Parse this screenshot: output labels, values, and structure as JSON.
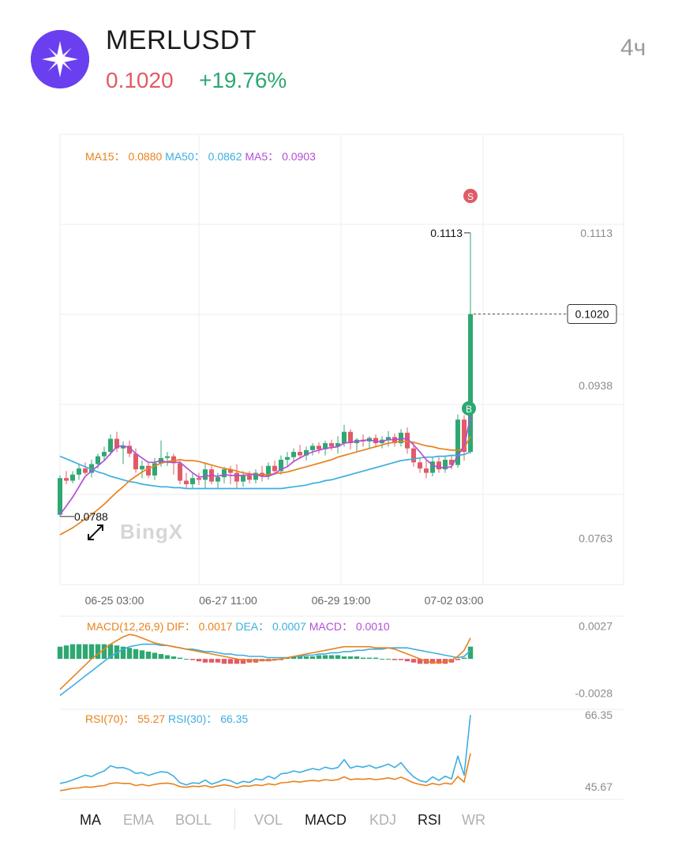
{
  "header": {
    "symbol": "MERLUSDT",
    "price": "0.1020",
    "change": "+19.76%",
    "interval": "4ч",
    "logo_icon": "merlin-star-icon"
  },
  "colors": {
    "up": "#2fa773",
    "down": "#e05b66",
    "ma15": "#e8821e",
    "ma50": "#3daee0",
    "ma5": "#b34fd6",
    "grid": "#eeeeee",
    "axis_text": "#8c8c8c",
    "logo_bg": "#6a3ff0"
  },
  "watermark": "BingX",
  "chart_data": [
    {
      "type": "candlestick",
      "legend": [
        {
          "label": "MA15",
          "value": "0.0880",
          "color": "#e8821e"
        },
        {
          "label": "MA50",
          "value": "0.0862",
          "color": "#3daee0"
        },
        {
          "label": "MA5",
          "value": "0.0903",
          "color": "#b34fd6"
        }
      ],
      "y_ticks": [
        "0.1113",
        "0.0938",
        "0.0763"
      ],
      "x_ticks": [
        "06-25 03:00",
        "06-27 11:00",
        "06-29 19:00",
        "07-02 03:00"
      ],
      "ylim": [
        0.071,
        0.1226
      ],
      "current_price": "0.1020",
      "high_marker": "0.1113",
      "low_marker": "0.0788",
      "signal_badges": [
        {
          "text": "S",
          "at": "high"
        },
        {
          "text": "B",
          "at": "entry"
        }
      ],
      "candles": [
        {
          "o": 0.079,
          "h": 0.0835,
          "l": 0.0788,
          "c": 0.0832
        },
        {
          "o": 0.0832,
          "h": 0.084,
          "l": 0.0825,
          "c": 0.0829
        },
        {
          "o": 0.0829,
          "h": 0.084,
          "l": 0.0826,
          "c": 0.0836
        },
        {
          "o": 0.0836,
          "h": 0.0848,
          "l": 0.083,
          "c": 0.0843
        },
        {
          "o": 0.0843,
          "h": 0.085,
          "l": 0.0836,
          "c": 0.0838
        },
        {
          "o": 0.0838,
          "h": 0.0853,
          "l": 0.0833,
          "c": 0.0848
        },
        {
          "o": 0.0848,
          "h": 0.086,
          "l": 0.0843,
          "c": 0.0857
        },
        {
          "o": 0.0857,
          "h": 0.0868,
          "l": 0.0852,
          "c": 0.0862
        },
        {
          "o": 0.0862,
          "h": 0.0882,
          "l": 0.0858,
          "c": 0.0877
        },
        {
          "o": 0.0877,
          "h": 0.0885,
          "l": 0.0862,
          "c": 0.0866
        },
        {
          "o": 0.0866,
          "h": 0.0874,
          "l": 0.0848,
          "c": 0.0869
        },
        {
          "o": 0.0869,
          "h": 0.0875,
          "l": 0.0856,
          "c": 0.086
        },
        {
          "o": 0.086,
          "h": 0.0866,
          "l": 0.0838,
          "c": 0.0842
        },
        {
          "o": 0.0842,
          "h": 0.0852,
          "l": 0.0832,
          "c": 0.0846
        },
        {
          "o": 0.0846,
          "h": 0.085,
          "l": 0.0832,
          "c": 0.0835
        },
        {
          "o": 0.0835,
          "h": 0.0855,
          "l": 0.083,
          "c": 0.0849
        },
        {
          "o": 0.0849,
          "h": 0.0875,
          "l": 0.0845,
          "c": 0.0855
        },
        {
          "o": 0.0855,
          "h": 0.0862,
          "l": 0.0846,
          "c": 0.0857
        },
        {
          "o": 0.0857,
          "h": 0.086,
          "l": 0.0836,
          "c": 0.0849
        },
        {
          "o": 0.0849,
          "h": 0.0852,
          "l": 0.0825,
          "c": 0.0829
        },
        {
          "o": 0.0829,
          "h": 0.0838,
          "l": 0.082,
          "c": 0.0825
        },
        {
          "o": 0.0825,
          "h": 0.0838,
          "l": 0.082,
          "c": 0.0832
        },
        {
          "o": 0.0832,
          "h": 0.0838,
          "l": 0.0824,
          "c": 0.083
        },
        {
          "o": 0.083,
          "h": 0.0848,
          "l": 0.082,
          "c": 0.0842
        },
        {
          "o": 0.0842,
          "h": 0.0846,
          "l": 0.0825,
          "c": 0.0828
        },
        {
          "o": 0.0828,
          "h": 0.0838,
          "l": 0.082,
          "c": 0.0833
        },
        {
          "o": 0.0833,
          "h": 0.0845,
          "l": 0.0826,
          "c": 0.0842
        },
        {
          "o": 0.0842,
          "h": 0.0846,
          "l": 0.0825,
          "c": 0.0838
        },
        {
          "o": 0.0838,
          "h": 0.0848,
          "l": 0.082,
          "c": 0.0828
        },
        {
          "o": 0.0828,
          "h": 0.084,
          "l": 0.0822,
          "c": 0.0835
        },
        {
          "o": 0.0835,
          "h": 0.084,
          "l": 0.0826,
          "c": 0.083
        },
        {
          "o": 0.083,
          "h": 0.0842,
          "l": 0.0826,
          "c": 0.0838
        },
        {
          "o": 0.0838,
          "h": 0.0846,
          "l": 0.0828,
          "c": 0.0834
        },
        {
          "o": 0.0834,
          "h": 0.085,
          "l": 0.083,
          "c": 0.0846
        },
        {
          "o": 0.0846,
          "h": 0.0852,
          "l": 0.0836,
          "c": 0.084
        },
        {
          "o": 0.084,
          "h": 0.0858,
          "l": 0.0836,
          "c": 0.0853
        },
        {
          "o": 0.0853,
          "h": 0.0862,
          "l": 0.0846,
          "c": 0.0856
        },
        {
          "o": 0.0856,
          "h": 0.0866,
          "l": 0.085,
          "c": 0.0862
        },
        {
          "o": 0.0862,
          "h": 0.087,
          "l": 0.0855,
          "c": 0.0858
        },
        {
          "o": 0.0858,
          "h": 0.0868,
          "l": 0.0852,
          "c": 0.0864
        },
        {
          "o": 0.0864,
          "h": 0.0872,
          "l": 0.0858,
          "c": 0.0869
        },
        {
          "o": 0.0869,
          "h": 0.0873,
          "l": 0.086,
          "c": 0.0865
        },
        {
          "o": 0.0865,
          "h": 0.0875,
          "l": 0.0858,
          "c": 0.0872
        },
        {
          "o": 0.0872,
          "h": 0.0876,
          "l": 0.0864,
          "c": 0.0868
        },
        {
          "o": 0.0868,
          "h": 0.088,
          "l": 0.086,
          "c": 0.0872
        },
        {
          "o": 0.0872,
          "h": 0.0893,
          "l": 0.0868,
          "c": 0.0885
        },
        {
          "o": 0.0885,
          "h": 0.0888,
          "l": 0.0865,
          "c": 0.0872
        },
        {
          "o": 0.0872,
          "h": 0.0878,
          "l": 0.0863,
          "c": 0.0876
        },
        {
          "o": 0.0876,
          "h": 0.0882,
          "l": 0.0868,
          "c": 0.0874
        },
        {
          "o": 0.0874,
          "h": 0.088,
          "l": 0.0866,
          "c": 0.0878
        },
        {
          "o": 0.0878,
          "h": 0.0882,
          "l": 0.0868,
          "c": 0.0872
        },
        {
          "o": 0.0872,
          "h": 0.088,
          "l": 0.0866,
          "c": 0.0876
        },
        {
          "o": 0.0876,
          "h": 0.0886,
          "l": 0.0868,
          "c": 0.0879
        },
        {
          "o": 0.0879,
          "h": 0.0883,
          "l": 0.0868,
          "c": 0.0872
        },
        {
          "o": 0.0872,
          "h": 0.0888,
          "l": 0.0868,
          "c": 0.0884
        },
        {
          "o": 0.0884,
          "h": 0.089,
          "l": 0.086,
          "c": 0.0866
        },
        {
          "o": 0.0866,
          "h": 0.0872,
          "l": 0.0845,
          "c": 0.085
        },
        {
          "o": 0.085,
          "h": 0.0855,
          "l": 0.0838,
          "c": 0.0843
        },
        {
          "o": 0.0843,
          "h": 0.0852,
          "l": 0.0832,
          "c": 0.0838
        },
        {
          "o": 0.0838,
          "h": 0.0856,
          "l": 0.0834,
          "c": 0.0851
        },
        {
          "o": 0.0851,
          "h": 0.0856,
          "l": 0.0838,
          "c": 0.0842
        },
        {
          "o": 0.0842,
          "h": 0.0858,
          "l": 0.0838,
          "c": 0.0853
        },
        {
          "o": 0.0853,
          "h": 0.0858,
          "l": 0.0842,
          "c": 0.0847
        },
        {
          "o": 0.0847,
          "h": 0.0905,
          "l": 0.0844,
          "c": 0.0899
        },
        {
          "o": 0.0899,
          "h": 0.0904,
          "l": 0.0852,
          "c": 0.0862
        },
        {
          "o": 0.0862,
          "h": 0.1113,
          "l": 0.086,
          "c": 0.102
        }
      ],
      "ma15_series": [
        0.0767,
        0.0771,
        0.0775,
        0.078,
        0.0785,
        0.079,
        0.0796,
        0.0802,
        0.0809,
        0.0816,
        0.0822,
        0.0829,
        0.0834,
        0.0839,
        0.0843,
        0.0846,
        0.0849,
        0.0851,
        0.0852,
        0.0853,
        0.0852,
        0.0852,
        0.0851,
        0.0849,
        0.0847,
        0.0845,
        0.0843,
        0.0842,
        0.084,
        0.0838,
        0.0837,
        0.0836,
        0.0836,
        0.0836,
        0.0837,
        0.0838,
        0.0839,
        0.0841,
        0.0843,
        0.0845,
        0.0847,
        0.0849,
        0.0851,
        0.0853,
        0.0856,
        0.0858,
        0.086,
        0.0862,
        0.0864,
        0.0866,
        0.0868,
        0.087,
        0.0872,
        0.0873,
        0.0874,
        0.0874,
        0.0873,
        0.0871,
        0.0869,
        0.0868,
        0.0866,
        0.0865,
        0.0864,
        0.0864,
        0.0866,
        0.088
      ],
      "ma50_series": [
        0.0857,
        0.0854,
        0.0851,
        0.0848,
        0.0845,
        0.0842,
        0.0839,
        0.0837,
        0.0834,
        0.0832,
        0.083,
        0.0828,
        0.0827,
        0.0825,
        0.0824,
        0.0823,
        0.0822,
        0.0822,
        0.0821,
        0.0821,
        0.082,
        0.082,
        0.082,
        0.082,
        0.082,
        0.082,
        0.082,
        0.082,
        0.082,
        0.082,
        0.082,
        0.082,
        0.082,
        0.082,
        0.082,
        0.082,
        0.0821,
        0.0822,
        0.0823,
        0.0824,
        0.0826,
        0.0827,
        0.0829,
        0.083,
        0.0832,
        0.0834,
        0.0836,
        0.0838,
        0.084,
        0.0842,
        0.0844,
        0.0846,
        0.0848,
        0.085,
        0.0852,
        0.0853,
        0.0854,
        0.0855,
        0.0856,
        0.0856,
        0.0857,
        0.0857,
        0.0858,
        0.0858,
        0.0859,
        0.0862
      ],
      "ma5_series": [
        0.079,
        0.08,
        0.081,
        0.0822,
        0.0834,
        0.084,
        0.0846,
        0.0852,
        0.086,
        0.0868,
        0.0869,
        0.0867,
        0.086,
        0.0855,
        0.085,
        0.085,
        0.0852,
        0.085,
        0.085,
        0.085,
        0.0844,
        0.0838,
        0.0833,
        0.0834,
        0.0835,
        0.0834,
        0.0836,
        0.0835,
        0.0835,
        0.0835,
        0.0836,
        0.0836,
        0.0834,
        0.0834,
        0.0837,
        0.0842,
        0.0845,
        0.0851,
        0.0855,
        0.0859,
        0.0862,
        0.0864,
        0.0866,
        0.0867,
        0.0868,
        0.0872,
        0.0873,
        0.0874,
        0.0875,
        0.0876,
        0.0874,
        0.0874,
        0.0876,
        0.0876,
        0.0877,
        0.0877,
        0.087,
        0.0862,
        0.0853,
        0.0847,
        0.0844,
        0.0844,
        0.0845,
        0.0858,
        0.0868,
        0.0903
      ]
    },
    {
      "type": "bar",
      "name": "MACD(12,26,9)",
      "legend": [
        {
          "label": "MACD(12,26,9)",
          "value": "",
          "color": "#e8821e"
        },
        {
          "label": "DIF",
          "value": "0.0017",
          "color": "#e8821e"
        },
        {
          "label": "DEA",
          "value": "0.0007",
          "color": "#3daee0"
        },
        {
          "label": "MACD",
          "value": "0.0010",
          "color": "#b34fd6"
        }
      ],
      "y_ticks": [
        "0.0027",
        "-0.0028"
      ],
      "ylim": [
        -0.004,
        0.0035
      ],
      "hist": [
        0.001,
        0.0011,
        0.0012,
        0.0012,
        0.0012,
        0.0012,
        0.0012,
        0.0012,
        0.0012,
        0.0011,
        0.001,
        0.0009,
        0.0008,
        0.0007,
        0.0006,
        0.0005,
        0.0004,
        0.0003,
        0.0002,
        0.0001,
        0.0,
        -0.0001,
        -0.0002,
        -0.0003,
        -0.0003,
        -0.0003,
        -0.0004,
        -0.0004,
        -0.0004,
        -0.0004,
        -0.0003,
        -0.0003,
        -0.0002,
        -0.0002,
        -0.0001,
        -0.0001,
        0.0001,
        0.0002,
        0.0002,
        0.0002,
        0.0002,
        0.0003,
        0.0003,
        0.0003,
        0.0003,
        0.0002,
        0.0002,
        0.0002,
        0.0001,
        0.0001,
        0.0001,
        0.0,
        0.0,
        -0.0001,
        -0.0001,
        -0.0002,
        -0.0003,
        -0.0004,
        -0.0004,
        -0.0004,
        -0.0004,
        -0.0004,
        -0.0003,
        -0.0001,
        0.0001,
        0.001
      ],
      "dif": [
        -0.0025,
        -0.002,
        -0.0015,
        -0.001,
        -0.0005,
        0.0,
        0.0004,
        0.0008,
        0.0012,
        0.0015,
        0.0018,
        0.002,
        0.0019,
        0.0017,
        0.0015,
        0.0013,
        0.0012,
        0.0011,
        0.001,
        0.0009,
        0.0008,
        0.0007,
        0.0006,
        0.0005,
        0.0004,
        0.0003,
        0.0002,
        0.0001,
        0.0,
        -0.0001,
        -0.0001,
        -0.0001,
        -0.0001,
        -0.0001,
        -0.0001,
        0.0,
        0.0001,
        0.0002,
        0.0003,
        0.0004,
        0.0005,
        0.0006,
        0.0007,
        0.0008,
        0.0009,
        0.001,
        0.001,
        0.001,
        0.001,
        0.001,
        0.0009,
        0.0009,
        0.0009,
        0.0008,
        0.0006,
        0.0004,
        0.0002,
        0.0,
        -0.0002,
        -0.0003,
        -0.0003,
        -0.0002,
        -0.0001,
        0.0002,
        0.0007,
        0.0017
      ],
      "dea": [
        -0.003,
        -0.0026,
        -0.0022,
        -0.0018,
        -0.0014,
        -0.001,
        -0.0006,
        -0.0002,
        0.0002,
        0.0005,
        0.0008,
        0.001,
        0.0011,
        0.0012,
        0.0012,
        0.0012,
        0.0011,
        0.0011,
        0.001,
        0.0009,
        0.0008,
        0.0008,
        0.0007,
        0.0006,
        0.0006,
        0.0005,
        0.0004,
        0.0004,
        0.0003,
        0.0003,
        0.0002,
        0.0002,
        0.0002,
        0.0001,
        0.0001,
        0.0001,
        0.0001,
        0.0002,
        0.0002,
        0.0003,
        0.0003,
        0.0004,
        0.0004,
        0.0005,
        0.0005,
        0.0006,
        0.0006,
        0.0007,
        0.0007,
        0.0008,
        0.0008,
        0.0008,
        0.0009,
        0.0009,
        0.0009,
        0.0009,
        0.0008,
        0.0007,
        0.0006,
        0.0005,
        0.0004,
        0.0003,
        0.0002,
        0.0001,
        0.0002,
        0.0007
      ]
    },
    {
      "type": "line",
      "legend": [
        {
          "label": "RSI(70)",
          "value": "55.27",
          "color": "#e8821e"
        },
        {
          "label": "RSI(30)",
          "value": "66.35",
          "color": "#3daee0"
        }
      ],
      "y_ticks": [
        "66.35",
        "45.67"
      ],
      "ylim": [
        42.0,
        68.0
      ],
      "series": [
        {
          "label": "RSI(70)",
          "color": "#e8821e",
          "values": [
            44.5,
            44.8,
            45.2,
            45.3,
            45.6,
            45.5,
            45.8,
            46.0,
            46.6,
            46.8,
            46.6,
            46.6,
            46.0,
            46.3,
            45.9,
            46.3,
            46.6,
            46.7,
            46.4,
            45.7,
            45.5,
            45.8,
            45.7,
            46.0,
            45.5,
            45.9,
            46.2,
            45.9,
            45.4,
            45.9,
            45.8,
            46.2,
            46.0,
            46.5,
            46.2,
            46.8,
            46.9,
            47.2,
            47.0,
            47.3,
            47.5,
            47.3,
            47.7,
            47.5,
            47.7,
            48.5,
            47.7,
            47.9,
            47.8,
            48.0,
            47.7,
            47.9,
            48.2,
            47.8,
            48.4,
            47.6,
            46.8,
            46.3,
            46.0,
            46.6,
            46.2,
            46.7,
            46.4,
            48.6,
            47.0,
            55.27
          ]
        },
        {
          "label": "RSI(30)",
          "color": "#3daee0",
          "values": [
            46.6,
            47.0,
            47.6,
            48.3,
            49.0,
            48.6,
            49.5,
            50.2,
            51.7,
            51.1,
            51.2,
            50.6,
            49.5,
            49.7,
            48.9,
            49.5,
            50.0,
            49.8,
            48.7,
            46.8,
            46.2,
            46.8,
            46.6,
            47.6,
            46.4,
            47.0,
            47.8,
            47.4,
            46.5,
            47.2,
            46.9,
            47.9,
            47.6,
            48.7,
            48.0,
            49.4,
            49.6,
            50.2,
            49.8,
            50.4,
            50.9,
            50.5,
            51.3,
            50.8,
            51.2,
            53.5,
            51.0,
            51.6,
            51.3,
            51.8,
            51.0,
            51.5,
            52.2,
            51.2,
            52.6,
            50.3,
            48.5,
            47.4,
            47.0,
            48.5,
            47.5,
            48.7,
            47.9,
            54.5,
            49.0,
            66.35
          ]
        }
      ]
    }
  ],
  "tabs": [
    {
      "label": "MA",
      "active": true
    },
    {
      "label": "EMA",
      "active": false
    },
    {
      "label": "BOLL",
      "active": false
    },
    {
      "label": "VOL",
      "active": false
    },
    {
      "label": "MACD",
      "active": true
    },
    {
      "label": "KDJ",
      "active": false
    },
    {
      "label": "RSI",
      "active": true
    },
    {
      "label": "WR",
      "active": false
    }
  ]
}
